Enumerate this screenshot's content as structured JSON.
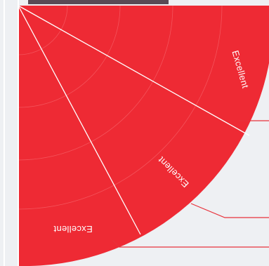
{
  "colors": {
    "background": "#eef0f3",
    "fan_fill": "#ee2a34",
    "divider": "#ffffff",
    "ring": "#f6656c",
    "leader": "#e8323b",
    "top_bar": "#5a4a55"
  },
  "segments": [
    {
      "label": "Excellent"
    },
    {
      "label": "Excellent"
    },
    {
      "label": "Excellent"
    }
  ]
}
